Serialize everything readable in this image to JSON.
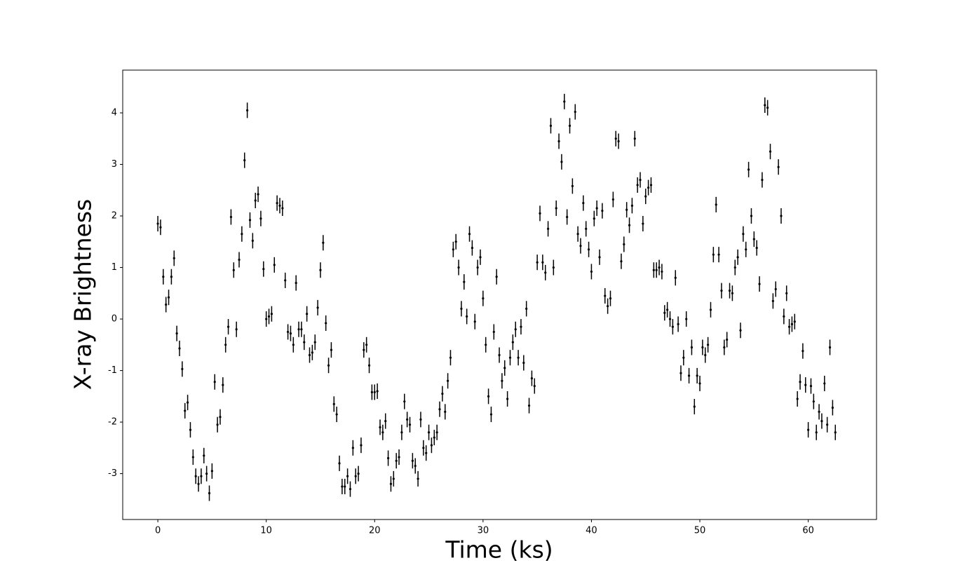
{
  "chart_data": {
    "type": "errorbar",
    "xlabel": "Time (ks)",
    "ylabel": "X-ray Brightness",
    "color": "#000000",
    "yerr": 0.15,
    "xlim": [
      -3.24,
      66.3
    ],
    "ylim": [
      -3.89,
      4.83
    ],
    "xticks": [
      0,
      10,
      20,
      30,
      40,
      50,
      60
    ],
    "yticks": [
      -3,
      -2,
      -1,
      0,
      1,
      2,
      3,
      4
    ],
    "x": [
      0,
      0.25,
      0.5,
      0.75,
      1,
      1.25,
      1.5,
      1.75,
      2,
      2.25,
      2.5,
      2.75,
      3,
      3.25,
      3.5,
      3.75,
      4,
      4.25,
      4.5,
      4.75,
      5,
      5.25,
      5.5,
      5.75,
      6,
      6.25,
      6.5,
      6.75,
      7,
      7.25,
      7.5,
      7.75,
      8,
      8.25,
      8.5,
      8.75,
      9,
      9.25,
      9.5,
      9.75,
      10,
      10.25,
      10.5,
      10.75,
      11,
      11.25,
      11.5,
      11.75,
      12,
      12.25,
      12.5,
      12.75,
      13,
      13.25,
      13.5,
      13.75,
      14,
      14.25,
      14.5,
      14.75,
      15,
      15.25,
      15.5,
      15.75,
      16,
      16.25,
      16.5,
      16.75,
      17,
      17.25,
      17.5,
      17.75,
      18,
      18.25,
      18.5,
      18.75,
      19,
      19.25,
      19.5,
      19.75,
      20,
      20.25,
      20.5,
      20.75,
      21,
      21.25,
      21.5,
      21.75,
      22,
      22.25,
      22.5,
      22.75,
      23,
      23.25,
      23.5,
      23.75,
      24,
      24.25,
      24.5,
      24.75,
      25,
      25.25,
      25.5,
      25.75,
      26,
      26.25,
      26.5,
      26.75,
      27,
      27.25,
      27.5,
      27.75,
      28,
      28.25,
      28.5,
      28.75,
      29,
      29.25,
      29.5,
      29.75,
      30,
      30.25,
      30.5,
      30.75,
      31,
      31.25,
      31.5,
      31.75,
      32,
      32.25,
      32.5,
      32.75,
      33,
      33.25,
      33.5,
      33.75,
      34,
      34.25,
      34.5,
      34.75,
      35,
      35.25,
      35.5,
      35.75,
      36,
      36.25,
      36.5,
      36.75,
      37,
      37.25,
      37.5,
      37.75,
      38,
      38.25,
      38.5,
      38.75,
      39,
      39.25,
      39.5,
      39.75,
      40,
      40.25,
      40.5,
      40.75,
      41,
      41.25,
      41.5,
      41.75,
      42,
      42.25,
      42.5,
      42.75,
      43,
      43.25,
      43.5,
      43.75,
      44,
      44.25,
      44.5,
      44.75,
      45,
      45.25,
      45.5,
      45.75,
      46,
      46.25,
      46.5,
      46.75,
      47,
      47.25,
      47.5,
      47.75,
      48,
      48.25,
      48.5,
      48.75,
      49,
      49.25,
      49.5,
      49.75,
      50,
      50.25,
      50.5,
      50.75,
      51,
      51.25,
      51.5,
      51.75,
      52,
      52.25,
      52.5,
      52.75,
      53,
      53.25,
      53.5,
      53.75,
      54,
      54.25,
      54.5,
      54.75,
      55,
      55.25,
      55.5,
      55.75,
      56,
      56.25,
      56.5,
      56.75,
      57,
      57.25,
      57.5,
      57.75,
      58,
      58.25,
      58.5,
      58.75,
      59,
      59.25,
      59.5,
      59.75,
      60,
      60.25,
      60.5,
      60.75,
      61,
      61.25,
      61.5,
      61.75,
      62,
      62.25,
      62.5
    ],
    "values": [
      1.85,
      1.78,
      0.82,
      0.28,
      0.42,
      0.82,
      1.18,
      -0.28,
      -0.57,
      -0.97,
      -1.78,
      -1.62,
      -2.15,
      -2.68,
      -3.05,
      -3.2,
      -3.05,
      -2.65,
      -3.0,
      -3.38,
      -2.95,
      -1.22,
      -2.05,
      -1.9,
      -1.28,
      -0.5,
      -0.15,
      1.98,
      0.95,
      -0.2,
      1.15,
      1.65,
      3.08,
      4.05,
      1.92,
      1.52,
      2.3,
      2.42,
      1.95,
      0.97,
      0.0,
      0.05,
      0.1,
      1.05,
      2.25,
      2.2,
      2.15,
      0.75,
      -0.25,
      -0.28,
      -0.5,
      0.7,
      -0.2,
      -0.2,
      -0.45,
      0.1,
      -0.7,
      -0.65,
      -0.45,
      0.22,
      0.95,
      1.48,
      -0.08,
      -0.9,
      -0.6,
      -1.65,
      -1.85,
      -2.8,
      -3.25,
      -3.25,
      -3.05,
      -3.3,
      -2.5,
      -3.05,
      -3.0,
      -2.45,
      -0.6,
      -0.5,
      -0.9,
      -1.42,
      -1.42,
      -1.4,
      -2.1,
      -2.2,
      -1.98,
      -2.7,
      -3.2,
      -3.1,
      -2.75,
      -2.68,
      -2.2,
      -1.6,
      -1.95,
      -2.05,
      -2.75,
      -2.85,
      -3.1,
      -1.95,
      -2.5,
      -2.6,
      -2.2,
      -2.45,
      -2.3,
      -2.2,
      -1.75,
      -1.45,
      -1.8,
      -1.2,
      -0.75,
      1.35,
      1.5,
      1.0,
      0.2,
      0.72,
      0.05,
      1.65,
      1.38,
      -0.05,
      1.0,
      1.2,
      0.4,
      -0.5,
      -1.5,
      -1.85,
      -0.25,
      0.82,
      -0.7,
      -1.2,
      -0.95,
      -1.55,
      -0.75,
      -0.45,
      -0.2,
      -0.75,
      -0.15,
      -0.85,
      0.2,
      -1.68,
      -1.15,
      -1.3,
      1.1,
      2.05,
      1.1,
      0.9,
      1.75,
      3.75,
      1.0,
      2.15,
      3.45,
      3.05,
      4.22,
      1.98,
      3.75,
      2.58,
      4.02,
      1.65,
      1.42,
      2.25,
      1.75,
      1.35,
      0.92,
      1.95,
      2.15,
      1.2,
      2.1,
      0.45,
      0.25,
      0.4,
      2.32,
      3.5,
      3.45,
      1.12,
      1.45,
      2.12,
      1.82,
      2.2,
      3.5,
      2.6,
      2.7,
      1.85,
      2.38,
      2.55,
      2.6,
      0.95,
      0.95,
      1.0,
      0.92,
      0.12,
      0.18,
      0.0,
      -0.15,
      0.8,
      -0.1,
      -1.05,
      -0.75,
      0.0,
      -1.1,
      -0.55,
      -1.7,
      -1.1,
      -1.25,
      -0.55,
      -0.7,
      -0.5,
      0.18,
      1.25,
      2.22,
      1.25,
      0.55,
      -0.55,
      -0.4,
      0.55,
      0.5,
      1.0,
      1.2,
      -0.22,
      1.65,
      1.35,
      2.9,
      2.0,
      1.55,
      1.38,
      0.68,
      2.7,
      4.15,
      4.1,
      3.25,
      0.35,
      0.58,
      2.95,
      2.0,
      0.05,
      0.5,
      -0.15,
      -0.1,
      -0.05,
      -1.55,
      -1.22,
      -0.62,
      -1.28,
      -2.15,
      -1.3,
      -1.6,
      -2.2,
      -1.8,
      -1.98,
      -1.25,
      -2.05,
      -0.55,
      -1.72,
      -2.2
    ]
  }
}
